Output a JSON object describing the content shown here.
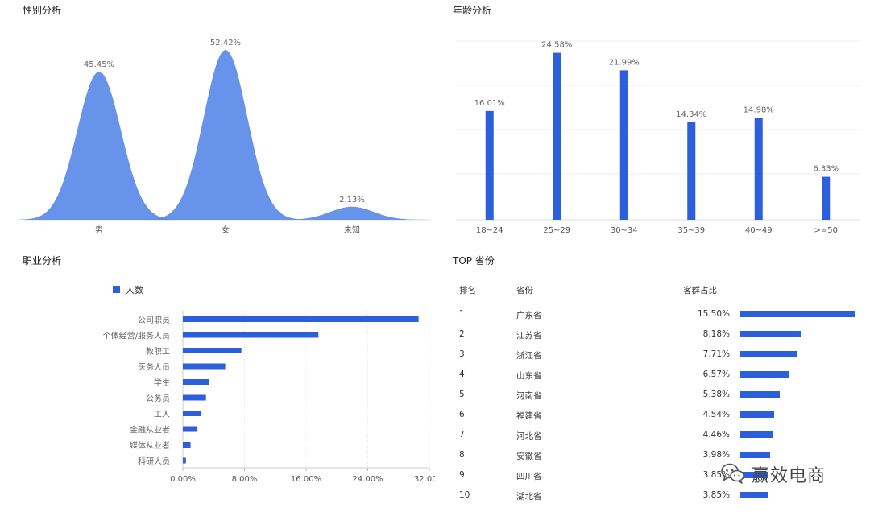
{
  "chart_data": [
    {
      "type": "area",
      "title": "性别分析",
      "categories": [
        "男",
        "女",
        "未知"
      ],
      "values": [
        45.45,
        52.42,
        2.13
      ],
      "data_labels": [
        "45.45%",
        "52.42%",
        "2.13%"
      ],
      "grid": false,
      "color": "#5a8ae8"
    },
    {
      "type": "bar",
      "title": "年龄分析",
      "categories": [
        "18~24",
        "25~29",
        "30~34",
        "35~39",
        "40~49",
        ">=50"
      ],
      "values": [
        16.01,
        24.58,
        21.99,
        14.34,
        14.98,
        6.33
      ],
      "data_labels": [
        "16.01%",
        "24.58%",
        "21.99%",
        "14.34%",
        "14.98%",
        "6.33%"
      ],
      "ylim": [
        0,
        25
      ],
      "grid": true,
      "color": "#2b5fdc"
    },
    {
      "type": "bar",
      "orientation": "horizontal",
      "title": "职业分析",
      "legend": {
        "position": "top-left",
        "entries": [
          "人数"
        ]
      },
      "categories": [
        "公司职员",
        "个体经营/服务人员",
        "教职工",
        "医务人员",
        "学生",
        "公务员",
        "工人",
        "金融从业者",
        "媒体从业者",
        "科研人员"
      ],
      "series": [
        {
          "name": "人数",
          "values": [
            30.6,
            17.6,
            7.6,
            5.5,
            3.4,
            3.0,
            2.3,
            1.9,
            1.0,
            0.4
          ]
        }
      ],
      "xticks": [
        "0.00%",
        "8.00%",
        "16.00%",
        "24.00%",
        "32.00%"
      ],
      "xlim": [
        0,
        32
      ],
      "grid": true,
      "color": "#2b5fdc"
    },
    {
      "type": "table",
      "title": "TOP 省份",
      "columns": [
        "排名",
        "省份",
        "客群占比"
      ],
      "rows": [
        {
          "rank": "1",
          "province": "广东省",
          "pct_label": "15.50%",
          "pct": 15.5
        },
        {
          "rank": "2",
          "province": "江苏省",
          "pct_label": "8.18%",
          "pct": 8.18
        },
        {
          "rank": "3",
          "province": "浙江省",
          "pct_label": "7.71%",
          "pct": 7.71
        },
        {
          "rank": "4",
          "province": "山东省",
          "pct_label": "6.57%",
          "pct": 6.57
        },
        {
          "rank": "5",
          "province": "河南省",
          "pct_label": "5.38%",
          "pct": 5.38
        },
        {
          "rank": "6",
          "province": "福建省",
          "pct_label": "4.54%",
          "pct": 4.54
        },
        {
          "rank": "7",
          "province": "河北省",
          "pct_label": "4.46%",
          "pct": 4.46
        },
        {
          "rank": "8",
          "province": "安徽省",
          "pct_label": "3.98%",
          "pct": 3.98
        },
        {
          "rank": "9",
          "province": "四川省",
          "pct_label": "3.85%",
          "pct": 3.85
        },
        {
          "rank": "10",
          "province": "湖北省",
          "pct_label": "3.85%",
          "pct": 3.85
        }
      ],
      "bar_max": 15.5,
      "color": "#2b5fdc"
    }
  ],
  "watermark": {
    "text": "赢效电商",
    "icon": "wechat-icon"
  }
}
